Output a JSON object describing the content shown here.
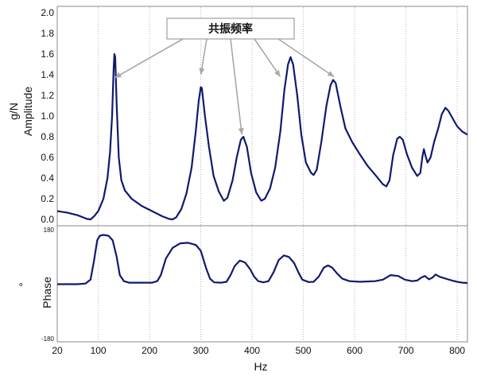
{
  "chart_data": [
    {
      "type": "line",
      "title": "",
      "xlabel": "Hz",
      "ylabel_lines": [
        "g/N",
        "Amplitude"
      ],
      "xlim": [
        20,
        820
      ],
      "ylim": [
        0,
        2.0
      ],
      "x_ticks": [
        20,
        100,
        200,
        300,
        400,
        500,
        600,
        700,
        800
      ],
      "y_ticks": [
        "0.0",
        "0.2",
        "0.4",
        "0.6",
        "0.8",
        "1.0",
        "1.2",
        "1.4",
        "1.6",
        "1.8",
        "2.0"
      ],
      "grid": "vertical dotted lines at x ticks",
      "annotation": {
        "label": "共振频率",
        "targets": [
          {
            "x": 132,
            "y": 1.37
          },
          {
            "x": 300,
            "y": 1.4
          },
          {
            "x": 380,
            "y": 0.82
          },
          {
            "x": 455,
            "y": 1.38
          },
          {
            "x": 560,
            "y": 1.38
          }
        ]
      },
      "series": [
        {
          "color": "#0f1a6e",
          "points": [
            [
              20,
              0.08
            ],
            [
              40,
              0.065
            ],
            [
              60,
              0.04
            ],
            [
              70,
              0.02
            ],
            [
              78,
              0.005
            ],
            [
              85,
              0.0
            ],
            [
              92,
              0.03
            ],
            [
              100,
              0.08
            ],
            [
              110,
              0.2
            ],
            [
              118,
              0.4
            ],
            [
              123,
              0.65
            ],
            [
              127,
              1.0
            ],
            [
              130,
              1.45
            ],
            [
              131.5,
              1.6
            ],
            [
              133,
              1.57
            ],
            [
              136,
              1.1
            ],
            [
              140,
              0.6
            ],
            [
              145,
              0.38
            ],
            [
              152,
              0.28
            ],
            [
              165,
              0.2
            ],
            [
              185,
              0.13
            ],
            [
              205,
              0.08
            ],
            [
              225,
              0.03
            ],
            [
              238,
              0.005
            ],
            [
              245,
              0.0
            ],
            [
              252,
              0.02
            ],
            [
              262,
              0.1
            ],
            [
              272,
              0.25
            ],
            [
              282,
              0.5
            ],
            [
              290,
              0.85
            ],
            [
              296,
              1.15
            ],
            [
              300,
              1.28
            ],
            [
              302,
              1.27
            ],
            [
              308,
              1.0
            ],
            [
              316,
              0.7
            ],
            [
              325,
              0.42
            ],
            [
              335,
              0.27
            ],
            [
              345,
              0.18
            ],
            [
              352,
              0.21
            ],
            [
              362,
              0.38
            ],
            [
              370,
              0.6
            ],
            [
              378,
              0.77
            ],
            [
              383,
              0.8
            ],
            [
              390,
              0.7
            ],
            [
              398,
              0.45
            ],
            [
              408,
              0.26
            ],
            [
              418,
              0.18
            ],
            [
              425,
              0.2
            ],
            [
              435,
              0.3
            ],
            [
              445,
              0.5
            ],
            [
              455,
              0.85
            ],
            [
              463,
              1.25
            ],
            [
              470,
              1.5
            ],
            [
              475,
              1.57
            ],
            [
              480,
              1.5
            ],
            [
              488,
              1.2
            ],
            [
              496,
              0.82
            ],
            [
              505,
              0.55
            ],
            [
              515,
              0.45
            ],
            [
              520,
              0.43
            ],
            [
              526,
              0.48
            ],
            [
              535,
              0.75
            ],
            [
              545,
              1.1
            ],
            [
              553,
              1.3
            ],
            [
              558,
              1.35
            ],
            [
              563,
              1.32
            ],
            [
              572,
              1.1
            ],
            [
              582,
              0.88
            ],
            [
              595,
              0.75
            ],
            [
              610,
              0.63
            ],
            [
              625,
              0.52
            ],
            [
              642,
              0.42
            ],
            [
              655,
              0.34
            ],
            [
              662,
              0.32
            ],
            [
              668,
              0.38
            ],
            [
              675,
              0.62
            ],
            [
              683,
              0.78
            ],
            [
              688,
              0.8
            ],
            [
              694,
              0.77
            ],
            [
              702,
              0.63
            ],
            [
              712,
              0.5
            ],
            [
              722,
              0.42
            ],
            [
              728,
              0.45
            ],
            [
              732,
              0.6
            ],
            [
              735,
              0.68
            ],
            [
              738,
              0.62
            ],
            [
              742,
              0.55
            ],
            [
              748,
              0.6
            ],
            [
              755,
              0.75
            ],
            [
              763,
              0.88
            ],
            [
              770,
              1.02
            ],
            [
              777,
              1.08
            ],
            [
              783,
              1.05
            ],
            [
              792,
              0.97
            ],
            [
              800,
              0.9
            ],
            [
              810,
              0.85
            ],
            [
              820,
              0.82
            ]
          ]
        }
      ]
    },
    {
      "type": "line",
      "title": "",
      "xlabel": "Hz",
      "ylabel_lines": [
        "°",
        "Phase"
      ],
      "xlim": [
        20,
        820
      ],
      "ylim": [
        -180,
        180
      ],
      "x_ticks": [
        20,
        100,
        200,
        300,
        400,
        500,
        600,
        700,
        800
      ],
      "y_ticks": [
        "180",
        "-180"
      ],
      "grid": "vertical dotted lines at x ticks",
      "series": [
        {
          "color": "#0f1a6e",
          "points": [
            [
              20,
              0
            ],
            [
              60,
              0
            ],
            [
              75,
              2
            ],
            [
              85,
              15
            ],
            [
              92,
              80
            ],
            [
              98,
              145
            ],
            [
              103,
              160
            ],
            [
              110,
              163
            ],
            [
              120,
              160
            ],
            [
              128,
              145
            ],
            [
              136,
              90
            ],
            [
              142,
              30
            ],
            [
              150,
              10
            ],
            [
              160,
              5
            ],
            [
              180,
              5
            ],
            [
              205,
              5
            ],
            [
              215,
              10
            ],
            [
              222,
              30
            ],
            [
              232,
              85
            ],
            [
              245,
              120
            ],
            [
              260,
              135
            ],
            [
              275,
              137
            ],
            [
              290,
              130
            ],
            [
              300,
              110
            ],
            [
              310,
              55
            ],
            [
              318,
              18
            ],
            [
              326,
              6
            ],
            [
              340,
              5
            ],
            [
              350,
              8
            ],
            [
              358,
              30
            ],
            [
              366,
              60
            ],
            [
              376,
              78
            ],
            [
              386,
              72
            ],
            [
              396,
              50
            ],
            [
              404,
              25
            ],
            [
              412,
              10
            ],
            [
              422,
              6
            ],
            [
              432,
              10
            ],
            [
              442,
              40
            ],
            [
              452,
              80
            ],
            [
              462,
              95
            ],
            [
              472,
              90
            ],
            [
              482,
              70
            ],
            [
              490,
              40
            ],
            [
              498,
              15
            ],
            [
              510,
              7
            ],
            [
              520,
              8
            ],
            [
              530,
              25
            ],
            [
              540,
              55
            ],
            [
              548,
              62
            ],
            [
              556,
              55
            ],
            [
              566,
              35
            ],
            [
              576,
              18
            ],
            [
              590,
              10
            ],
            [
              610,
              8
            ],
            [
              640,
              10
            ],
            [
              655,
              15
            ],
            [
              670,
              30
            ],
            [
              685,
              27
            ],
            [
              698,
              15
            ],
            [
              712,
              10
            ],
            [
              722,
              12
            ],
            [
              730,
              22
            ],
            [
              737,
              27
            ],
            [
              745,
              16
            ],
            [
              752,
              22
            ],
            [
              758,
              32
            ],
            [
              764,
              26
            ],
            [
              770,
              22
            ],
            [
              780,
              17
            ],
            [
              790,
              12
            ],
            [
              800,
              8
            ],
            [
              810,
              5
            ],
            [
              820,
              4
            ]
          ]
        }
      ]
    }
  ]
}
